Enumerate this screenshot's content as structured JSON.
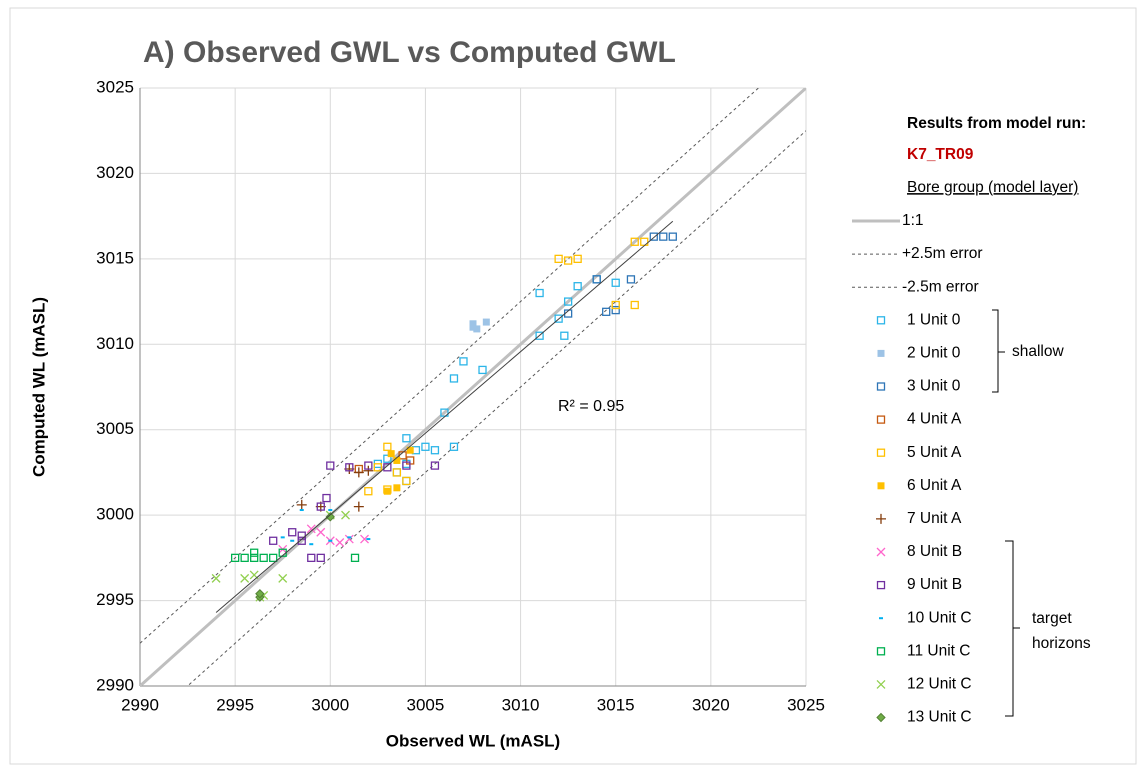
{
  "chart_data": {
    "type": "scatter",
    "title": "A) Observed GWL vs Computed GWL",
    "x_label": "Observed WL (mASL)",
    "y_label": "Computed WL (mASL)",
    "xlim": [
      2990,
      3025
    ],
    "ylim": [
      2990,
      3025
    ],
    "xticks": [
      2990,
      2995,
      3000,
      3005,
      3010,
      3015,
      3020,
      3025
    ],
    "yticks": [
      2990,
      2995,
      3000,
      3005,
      3010,
      3015,
      3020,
      3025
    ],
    "grid": true,
    "annotation": "R² = 0.95",
    "legend_header": "Results from model run:",
    "model_run": "K7_TR09",
    "legend_subheader": "Bore group (model layer)",
    "group_shallow": "shallow",
    "group_target": [
      "target",
      "horizons"
    ],
    "reference_lines": [
      {
        "name": "1:1",
        "color": "#bfbfbf",
        "offset": 0,
        "dashed": false
      },
      {
        "name": "+2.5m error",
        "color": "#595959",
        "offset": 2.5,
        "dashed": true
      },
      {
        "name": "-2.5m error",
        "color": "#595959",
        "offset": -2.5,
        "dashed": true
      }
    ],
    "trendline": {
      "color": "#404040",
      "x": [
        2994,
        3018
      ],
      "y": [
        2994.3,
        3017.2
      ]
    },
    "series": [
      {
        "name": "1 Unit 0",
        "color": "#2cb5e8",
        "marker": "square-open",
        "x": [
          3004,
          3005,
          3006,
          3006.5,
          3007,
          3008,
          3011,
          3011,
          3012,
          3012.5,
          3013,
          3014,
          3015,
          3003.5,
          3004,
          3004.5,
          3005.5,
          3006.5,
          3004,
          3003,
          3002.5,
          3012.3
        ],
        "y": [
          3003,
          3004,
          3006,
          3008,
          3009,
          3008.5,
          3010.5,
          3013,
          3011.5,
          3012.5,
          3013.4,
          3013.8,
          3013.6,
          3002.5,
          3002,
          3003.8,
          3003.8,
          3004,
          3004.5,
          3003.3,
          3003,
          3010.5
        ]
      },
      {
        "name": "2 Unit 0",
        "color": "#9dc3e6",
        "marker": "square-filled",
        "x": [
          3007.5,
          3007.7,
          3008.2,
          3007.5
        ],
        "y": [
          3011.2,
          3010.9,
          3011.3,
          3011
        ]
      },
      {
        "name": "3 Unit 0",
        "color": "#2e75b6",
        "marker": "square-open",
        "x": [
          3017,
          3017.5,
          3018,
          3014,
          3014.5,
          3015,
          3015.8,
          3012.5
        ],
        "y": [
          3016.3,
          3016.3,
          3016.3,
          3013.8,
          3011.9,
          3012,
          3013.8,
          3011.8
        ]
      },
      {
        "name": "4 Unit A",
        "color": "#c55a11",
        "marker": "square-open",
        "x": [
          3004.2,
          3003.8,
          3001.5
        ],
        "y": [
          3003.2,
          3003.5,
          3002.7
        ]
      },
      {
        "name": "5 Unit A",
        "color": "#ffc000",
        "marker": "square-open",
        "x": [
          3012,
          3012.5,
          3013,
          3016,
          3016.5,
          3015,
          3016,
          3003,
          3002.5,
          3002,
          3003,
          3004,
          3003.5
        ],
        "y": [
          3015,
          3014.9,
          3015,
          3016,
          3016,
          3012.3,
          3012.3,
          3004,
          3002.8,
          3001.4,
          3001.5,
          3002,
          3002.5
        ]
      },
      {
        "name": "6 Unit A",
        "color": "#ffc000",
        "marker": "square-filled",
        "x": [
          3003.5,
          3003,
          3003.2,
          3004.2,
          3003.5
        ],
        "y": [
          3001.6,
          3001.4,
          3003.6,
          3003.8,
          3003.2
        ]
      },
      {
        "name": "7 Unit A",
        "color": "#843c0c",
        "marker": "plus",
        "x": [
          2998.5,
          2999.5,
          3001.5,
          3001,
          3001.5,
          3002
        ],
        "y": [
          3000.6,
          3000.5,
          3000.5,
          3002.7,
          3002.5,
          3002.6
        ]
      },
      {
        "name": "8 Unit B",
        "color": "#ff66cc",
        "marker": "cross",
        "x": [
          2999,
          2999.5,
          3000,
          3000.5,
          3001,
          3001.8,
          2997.5
        ],
        "y": [
          2999.2,
          2999,
          2998.5,
          2998.4,
          2998.6,
          2998.6,
          2998
        ]
      },
      {
        "name": "9 Unit B",
        "color": "#7030a0",
        "marker": "square-open",
        "x": [
          3000,
          3001,
          3002,
          3003,
          3004,
          3005.5,
          2999.8,
          2999.5,
          2998,
          2998.5,
          2997,
          2999,
          2999.5,
          2998.5
        ],
        "y": [
          3002.9,
          3002.8,
          3002.9,
          3002.8,
          3002.9,
          3002.9,
          3001,
          3000.5,
          2999,
          2998.8,
          2998.5,
          2997.5,
          2997.5,
          2998.5
        ]
      },
      {
        "name": "10 Unit C",
        "color": "#00b0f0",
        "marker": "dash",
        "x": [
          2997.5,
          2998,
          2999,
          3000,
          3001,
          3002,
          2998.5,
          3000
        ],
        "y": [
          2998.7,
          2998.5,
          2998.3,
          2998.5,
          2998.7,
          2998.6,
          3000.3,
          3000.3
        ]
      },
      {
        "name": "11 Unit C",
        "color": "#00b050",
        "marker": "square-open",
        "x": [
          2995,
          2995.5,
          2996,
          2996.5,
          2997,
          2997.5,
          3001.3,
          2996
        ],
        "y": [
          2997.5,
          2997.5,
          2997.5,
          2997.5,
          2997.5,
          2997.8,
          2997.5,
          2997.8
        ]
      },
      {
        "name": "12 Unit C",
        "color": "#92d050",
        "marker": "cross",
        "x": [
          2994,
          2995.5,
          2997.5,
          2996.3,
          2996.5,
          3000,
          3000.8,
          2996
        ],
        "y": [
          2996.3,
          2996.3,
          2996.3,
          2995.2,
          2995.3,
          3000,
          3000,
          2996.5
        ]
      },
      {
        "name": "13 Unit C",
        "color": "#70ad47",
        "marker": "diamond",
        "x": [
          2996.3,
          2996.3,
          3000
        ],
        "y": [
          2995.2,
          2995.4,
          2999.9
        ]
      }
    ]
  }
}
